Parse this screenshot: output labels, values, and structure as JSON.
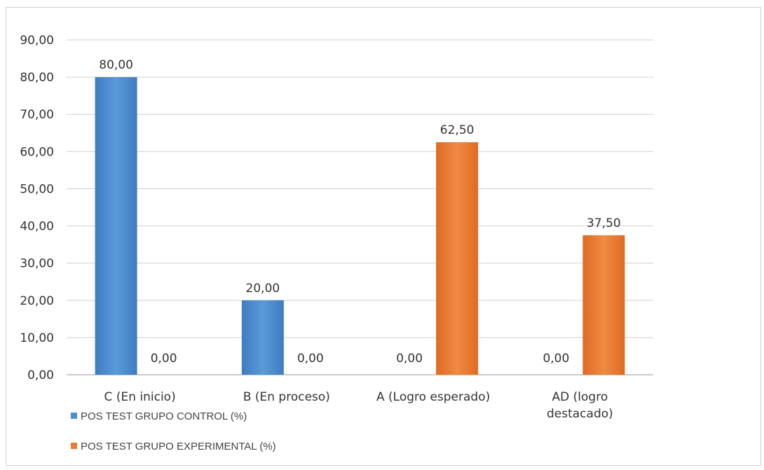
{
  "chart_data": {
    "type": "bar",
    "title": "",
    "xlabel": "",
    "ylabel": "",
    "ylim": [
      0,
      90
    ],
    "y_ticks": [
      "0,00",
      "10,00",
      "20,00",
      "30,00",
      "40,00",
      "50,00",
      "60,00",
      "70,00",
      "80,00",
      "90,00"
    ],
    "grid": true,
    "legend_placement": "bottom-left",
    "categories": [
      [
        "C (En inicio)"
      ],
      [
        "B (En proceso)"
      ],
      [
        "A (Logro esperado)"
      ],
      [
        "AD (logro",
        "destacado)"
      ]
    ],
    "series": [
      {
        "name": "POS TEST GRUPO CONTROL (%)",
        "color": "#4e8fd0",
        "values": [
          80.0,
          20.0,
          0.0,
          0.0
        ],
        "labels": [
          "80,00",
          "20,00",
          "",
          ""
        ]
      },
      {
        "name": "POS TEST GRUPO EXPERIMENTAL (%)",
        "color": "#ec7a33",
        "values": [
          0.0,
          0.0,
          62.5,
          37.5
        ],
        "labels": [
          "0,00",
          "0,00",
          "62,50",
          "37,50"
        ]
      }
    ],
    "zero_labels_control": [
      "",
      "",
      "0,00",
      "0,00"
    ]
  }
}
